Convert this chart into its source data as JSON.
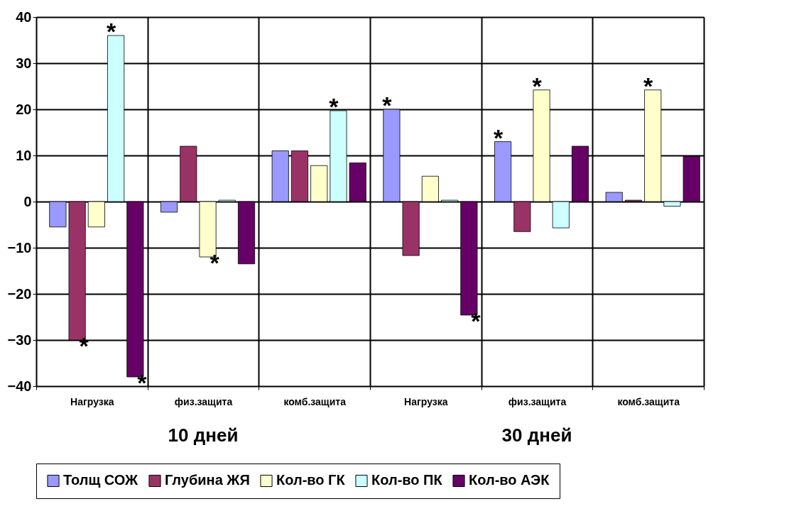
{
  "chart_data": {
    "type": "bar",
    "categories": [
      "Нагрузка",
      "физ.защита",
      "комб.защита",
      "Нагрузка",
      "физ.защита",
      "комб.защита"
    ],
    "series": [
      {
        "name": "Толщ СОЖ",
        "color": "#9999ff",
        "values": [
          -5.5,
          -2.3,
          11,
          20,
          13,
          2
        ],
        "value_labels": [
          null,
          null,
          null,
          "*",
          "*",
          null
        ]
      },
      {
        "name": "Глубина ЖЯ",
        "color": "#993366",
        "values": [
          -30,
          12,
          11,
          -11.7,
          -6.5,
          0.3
        ],
        "value_labels": [
          "*",
          null,
          null,
          null,
          null,
          null
        ]
      },
      {
        "name": "Кол-во ГК",
        "color": "#ffffcc",
        "values": [
          -5.5,
          -12,
          7.8,
          5.5,
          24.2,
          24.2
        ],
        "value_labels": [
          null,
          "*",
          null,
          null,
          "*",
          "*"
        ]
      },
      {
        "name": "Кол-во ПК",
        "color": "#ccffff",
        "values": [
          36,
          0.3,
          19.7,
          0.3,
          -5.7,
          -1
        ],
        "value_labels": [
          "*",
          null,
          "*",
          null,
          null,
          null
        ]
      },
      {
        "name": "Кол-во АЭК",
        "color": "#660066",
        "values": [
          -38,
          -13.5,
          8.4,
          -24.6,
          12,
          9.8
        ],
        "value_labels": [
          "*",
          null,
          null,
          "*",
          null,
          null
        ]
      }
    ],
    "ylim": [
      -40,
      40
    ],
    "yticks": [
      -40,
      -30,
      -20,
      -10,
      0,
      10,
      20,
      30,
      40
    ],
    "grid": true,
    "legend": "bottom",
    "annotations": [
      "10 дней",
      "30 дней"
    ]
  }
}
